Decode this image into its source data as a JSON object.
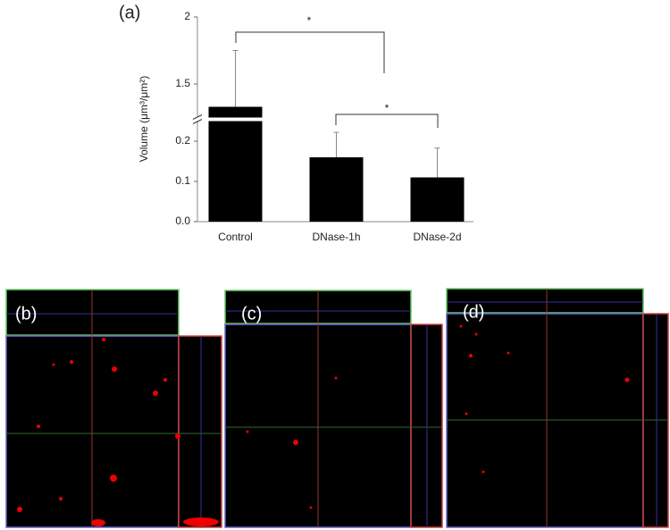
{
  "chart_data": {
    "type": "bar",
    "panel_label": "(a)",
    "ylabel": "Volume (μm³/μm²)",
    "categories": [
      "Control",
      "DNase-1h",
      "DNase-2d"
    ],
    "values": [
      1.33,
      0.16,
      0.11
    ],
    "errors": [
      0.42,
      0.062,
      0.073
    ],
    "color": "#000000",
    "ylim": [
      0,
      2
    ],
    "ybreak": [
      0.25,
      1.25
    ],
    "yticks": [
      {
        "value": 0,
        "label": "0.0"
      },
      0.1,
      0.2,
      1.5,
      2
    ],
    "annotations": [
      "*",
      "*"
    ]
  },
  "panel_labels": [
    "(b)",
    "(c)",
    "(d)"
  ]
}
